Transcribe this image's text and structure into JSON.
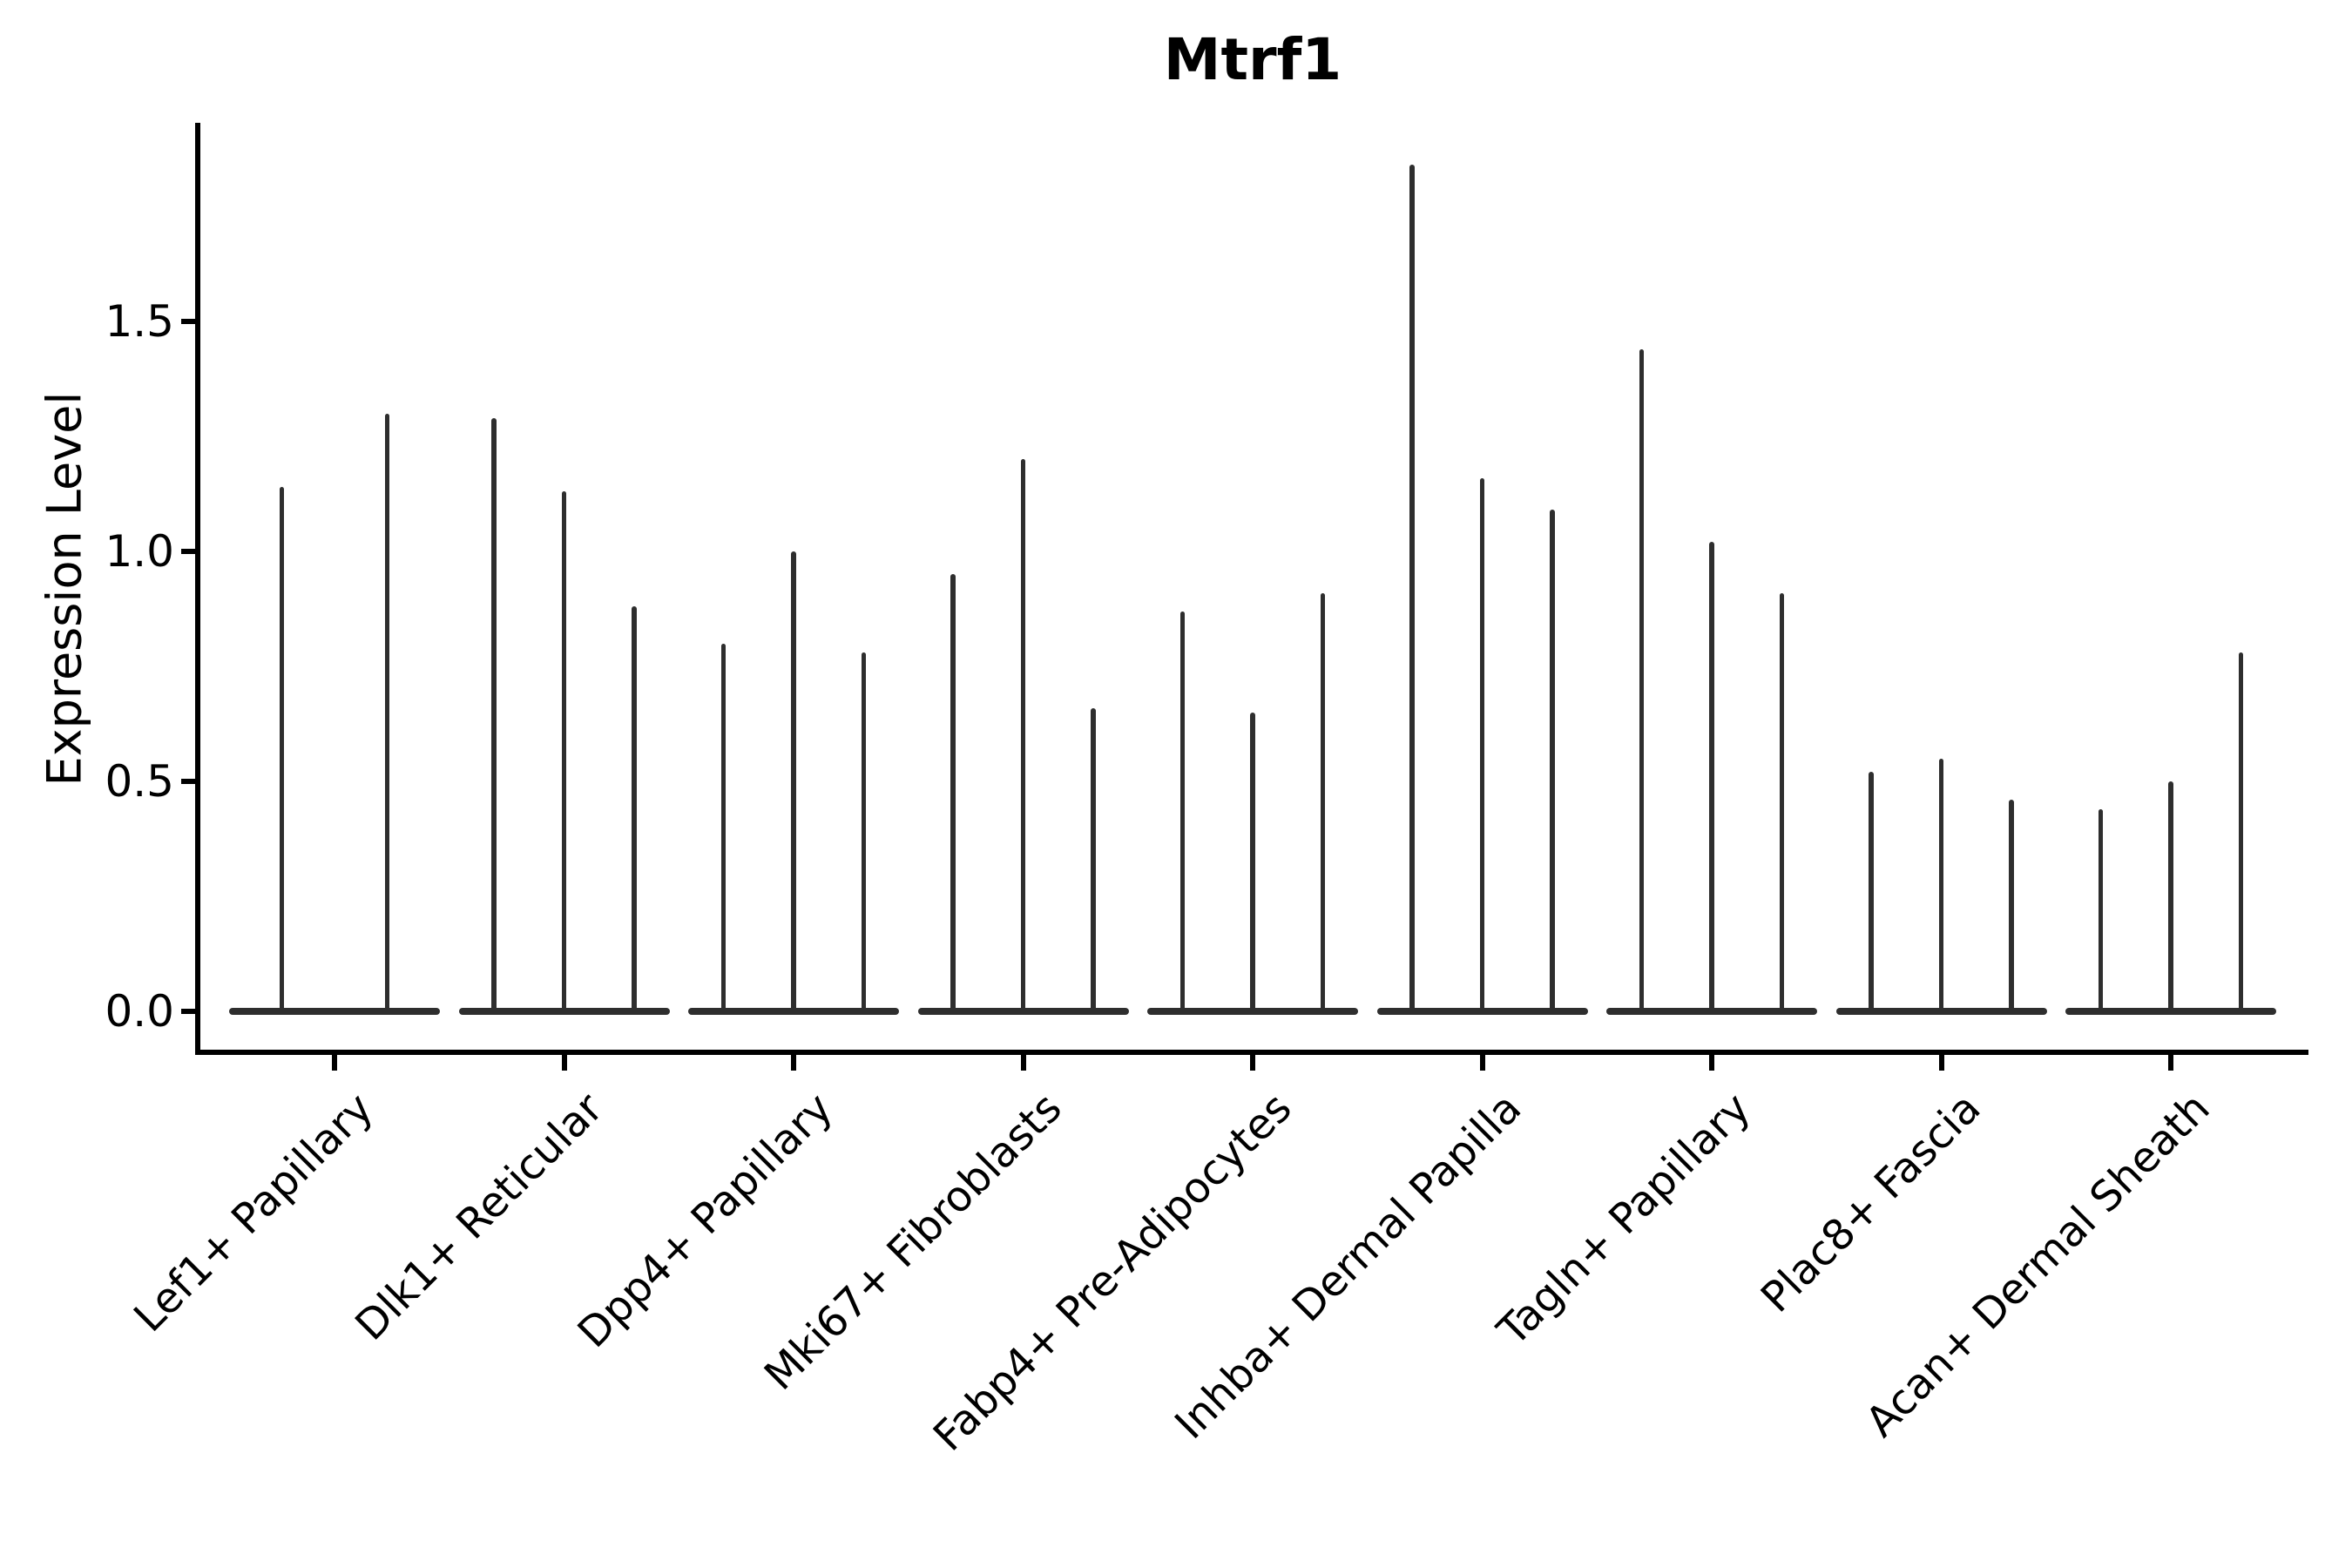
{
  "title": "Mtrf1",
  "y_axis": {
    "label": "Expression Level",
    "tick_labels": [
      "0.0",
      "0.5",
      "1.0",
      "1.5"
    ]
  },
  "chart_data": {
    "type": "violin",
    "title": "Mtrf1",
    "xlabel": "",
    "ylabel": "Expression Level",
    "ylim": [
      -0.09,
      1.93
    ],
    "yticks": [
      0.0,
      0.5,
      1.0,
      1.5
    ],
    "grid": false,
    "legend": "none",
    "orientation": "vertical",
    "note": "Each violin is collapsed flat at expression 0 with a thin density spike rising to its maximum expression value",
    "categories": [
      "Lef1+ Papillary",
      "Dlk1+ Reticular",
      "Dpp4+ Papillary",
      "Mki67+ Fibroblasts",
      "Fabp4+ Pre-Adipocytes",
      "Inhba+ Dermal Papilla",
      "Tagln+ Papillary",
      "Plac8+ Fascia",
      "Acan+ Dermal Sheath"
    ],
    "violins_per_category": [
      2,
      3,
      3,
      3,
      3,
      3,
      3,
      3,
      3
    ],
    "spike_max_values": [
      [
        1.14,
        1.3
      ],
      [
        1.29,
        1.13,
        0.88
      ],
      [
        0.8,
        1.0,
        0.78
      ],
      [
        0.95,
        1.2,
        0.66
      ],
      [
        0.87,
        0.65,
        0.91
      ],
      [
        1.84,
        1.16,
        1.09
      ],
      [
        1.44,
        1.02,
        0.91
      ],
      [
        0.52,
        0.55,
        0.46
      ],
      [
        0.44,
        0.5,
        0.78
      ]
    ],
    "baseline": 0.0
  },
  "colors": {
    "violin": "#2e2e2e",
    "axis": "#000000",
    "text": "#000000",
    "background": "#ffffff"
  }
}
